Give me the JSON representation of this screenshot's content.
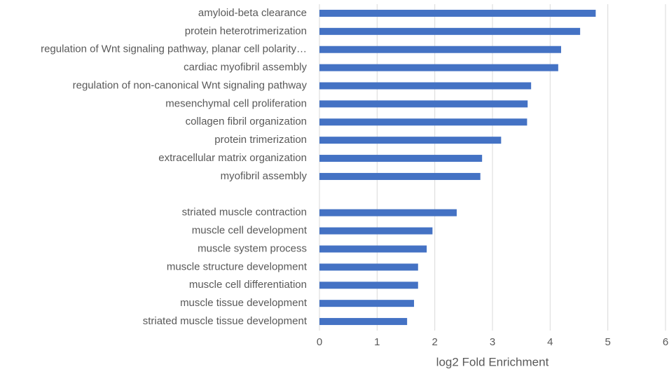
{
  "chart_data": {
    "type": "bar",
    "orientation": "horizontal",
    "x_label": "log2 Fold Enrichment",
    "categories": [
      "amyloid-beta clearance",
      "protein heterotrimerization",
      "regulation of Wnt signaling pathway, planar cell polarity…",
      "cardiac myofibril assembly",
      "regulation of non-canonical Wnt signaling pathway",
      "mesenchymal cell proliferation",
      "collagen fibril organization",
      "protein trimerization",
      "extracellular matrix organization",
      "myofibril assembly",
      null,
      "striated muscle contraction",
      "muscle cell development",
      "muscle system process",
      "muscle structure development",
      "muscle cell differentiation",
      "muscle tissue development",
      "striated muscle tissue development"
    ],
    "values": [
      4.79,
      4.52,
      4.19,
      4.14,
      3.67,
      3.61,
      3.6,
      3.15,
      2.82,
      2.79,
      null,
      2.38,
      1.96,
      1.86,
      1.71,
      1.71,
      1.64,
      1.52
    ],
    "color": "#4472c4",
    "xlim": [
      0,
      6
    ],
    "xticks": [
      0,
      1,
      2,
      3,
      4,
      5,
      6
    ],
    "grid": true
  }
}
